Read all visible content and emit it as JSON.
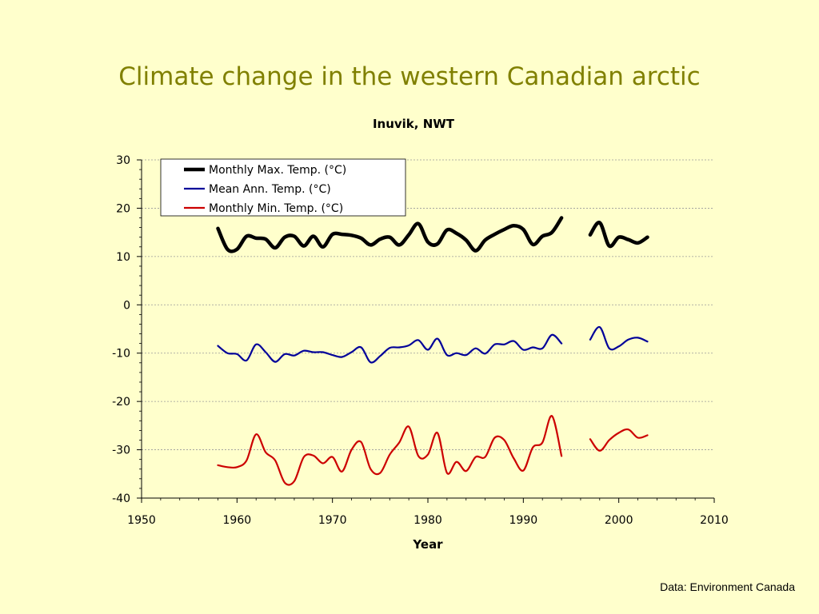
{
  "slide": {
    "title": "Climate change in the western Canadian arctic",
    "credit": "Data: Environment Canada"
  },
  "chart_data": {
    "type": "line",
    "title": "Inuvik, NWT",
    "xlabel": "Year",
    "ylabel": "",
    "xlim": [
      1950,
      2010
    ],
    "ylim": [
      -40,
      30
    ],
    "x_ticks": [
      "1950",
      "1960",
      "1970",
      "1980",
      "1990",
      "2000",
      "2010"
    ],
    "y_ticks": [
      "30",
      "20",
      "10",
      "0",
      "-10",
      "-20",
      "-30",
      "-40"
    ],
    "grid": "horizontal dashed",
    "legend_position": "top-left",
    "series": [
      {
        "name": "Monthly Max. Temp. (°C)",
        "color": "#000000",
        "x": [
          1958,
          1959,
          1960,
          1961,
          1962,
          1963,
          1964,
          1965,
          1966,
          1967,
          1968,
          1969,
          1970,
          1971,
          1972,
          1973,
          1974,
          1975,
          1976,
          1977,
          1978,
          1979,
          1980,
          1981,
          1982,
          1983,
          1984,
          1985,
          1986,
          1987,
          1988,
          1989,
          1990,
          1991,
          1992,
          1993,
          1994,
          1995,
          1996,
          1997,
          1998,
          1999,
          2000,
          2001,
          2002,
          2003
        ],
        "values": [
          15.8,
          11.5,
          11.5,
          14.2,
          13.8,
          13.6,
          11.8,
          14.0,
          14.2,
          12.2,
          14.2,
          12.0,
          14.6,
          14.6,
          14.4,
          13.8,
          12.4,
          13.6,
          14.0,
          12.4,
          14.5,
          16.8,
          13.0,
          12.6,
          15.5,
          14.8,
          13.4,
          11.2,
          13.4,
          14.6,
          15.6,
          16.4,
          15.6,
          12.5,
          14.2,
          15.0,
          18.0,
          null,
          null,
          14.5,
          17.0,
          12.2,
          14.0,
          13.5,
          12.8,
          14.0
        ]
      },
      {
        "name": "Mean Ann. Temp. (°C)",
        "color": "#000099",
        "x": [
          1958,
          1959,
          1960,
          1961,
          1962,
          1963,
          1964,
          1965,
          1966,
          1967,
          1968,
          1969,
          1970,
          1971,
          1972,
          1973,
          1974,
          1975,
          1976,
          1977,
          1978,
          1979,
          1980,
          1981,
          1982,
          1983,
          1984,
          1985,
          1986,
          1987,
          1988,
          1989,
          1990,
          1991,
          1992,
          1993,
          1994,
          1995,
          1996,
          1997,
          1998,
          1999,
          2000,
          2001,
          2002,
          2003
        ],
        "values": [
          -8.5,
          -10.0,
          -10.2,
          -11.5,
          -8.2,
          -9.8,
          -11.8,
          -10.2,
          -10.5,
          -9.5,
          -9.8,
          -9.8,
          -10.4,
          -10.8,
          -9.8,
          -8.8,
          -11.9,
          -10.6,
          -8.9,
          -8.8,
          -8.4,
          -7.3,
          -9.3,
          -7.0,
          -10.4,
          -10.0,
          -10.4,
          -9.0,
          -10.1,
          -8.2,
          -8.2,
          -7.5,
          -9.3,
          -8.8,
          -9.0,
          -6.2,
          -8.0,
          null,
          null,
          -7.2,
          -4.6,
          -9.0,
          -8.6,
          -7.2,
          -6.8,
          -7.6
        ]
      },
      {
        "name": "Monthly Min. Temp. (°C)",
        "color": "#cc0000",
        "x": [
          1958,
          1959,
          1960,
          1961,
          1962,
          1963,
          1964,
          1965,
          1966,
          1967,
          1968,
          1969,
          1970,
          1971,
          1972,
          1973,
          1974,
          1975,
          1976,
          1977,
          1978,
          1979,
          1980,
          1981,
          1982,
          1983,
          1984,
          1985,
          1986,
          1987,
          1988,
          1989,
          1990,
          1991,
          1992,
          1993,
          1994,
          1995,
          1996,
          1997,
          1998,
          1999,
          2000,
          2001,
          2002,
          2003
        ],
        "values": [
          -33.2,
          -33.6,
          -33.6,
          -32.2,
          -26.8,
          -30.5,
          -32.2,
          -36.8,
          -36.5,
          -31.5,
          -31.2,
          -32.8,
          -31.5,
          -34.5,
          -30.0,
          -28.4,
          -34.0,
          -34.8,
          -31.0,
          -28.5,
          -25.2,
          -31.3,
          -31.0,
          -26.5,
          -34.8,
          -32.5,
          -34.4,
          -31.5,
          -31.5,
          -27.5,
          -28.0,
          -31.8,
          -34.3,
          -29.5,
          -28.5,
          -23.0,
          -31.3,
          null,
          null,
          -27.8,
          -30.2,
          -28.0,
          -26.5,
          -25.8,
          -27.5,
          -27.0
        ]
      }
    ]
  }
}
